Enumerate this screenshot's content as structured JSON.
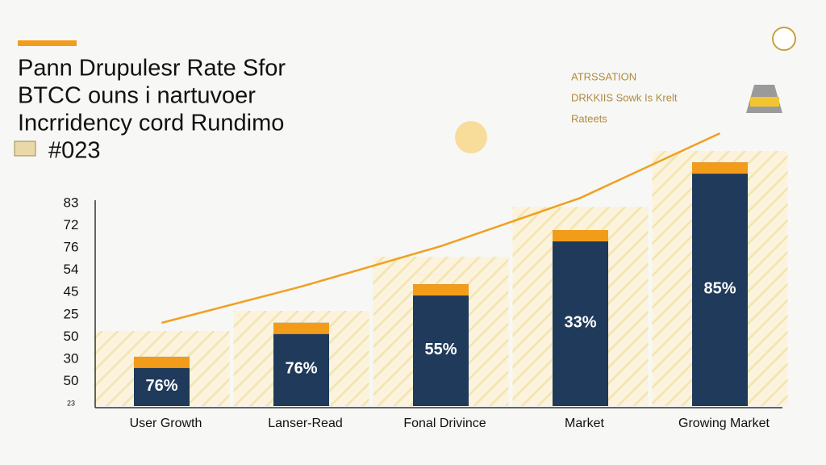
{
  "chart_data": {
    "type": "bar",
    "title_lines": [
      "Pann Drupulesr Rate Sfor",
      "BTCC ouns i nartuvoer",
      "Incrridency cord Rundimo",
      "#023"
    ],
    "annotation_lines": [
      "ATRSSATION",
      "DRKKIIS Sowk Is Krelt",
      "Rateets"
    ],
    "categories": [
      "User Growth",
      "Lanser-Read",
      "Fonal Drivince",
      "Market",
      "Growing Market"
    ],
    "values": [
      19.3,
      32.6,
      47.7,
      68.9,
      95.4
    ],
    "bar_labels": [
      "76%",
      "76%",
      "55%",
      "33%",
      "85%"
    ],
    "background_values": [
      29.4,
      37.3,
      58.5,
      78,
      99.9
    ],
    "line_values": [
      32.6,
      46.8,
      62.6,
      81.5,
      106.8
    ],
    "y_labels": [
      83,
      72,
      76,
      54,
      45,
      25,
      50,
      30,
      50,
      23
    ],
    "ylim": [
      0,
      110
    ],
    "color": "#1f3a5a",
    "cap_color": "#f39c1a",
    "line_color": "#f0a020",
    "background_color": "#fbf3dc"
  }
}
